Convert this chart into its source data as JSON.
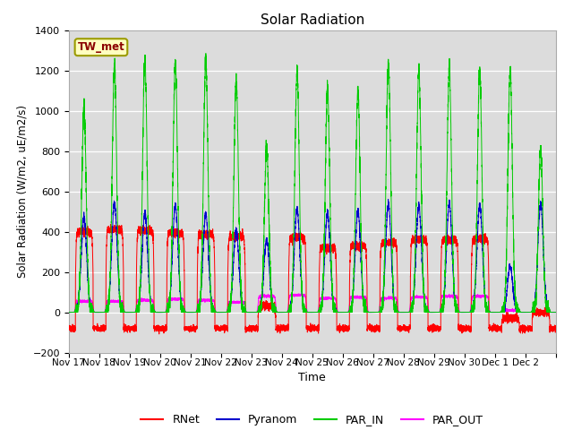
{
  "title": "Solar Radiation",
  "ylabel": "Solar Radiation (W/m2, uE/m2/s)",
  "xlabel": "Time",
  "ylim": [
    -200,
    1400
  ],
  "yticks": [
    -200,
    0,
    200,
    400,
    600,
    800,
    1000,
    1200,
    1400
  ],
  "xtick_labels": [
    "Nov 17",
    "Nov 18",
    "Nov 19",
    "Nov 20",
    "Nov 21",
    "Nov 22",
    "Nov 23",
    "Nov 24",
    "Nov 25",
    "Nov 26",
    "Nov 27",
    "Nov 28",
    "Nov 29",
    "Nov 30",
    "Dec 1",
    "Dec 2"
  ],
  "station_label": "TW_met",
  "station_label_color": "#8B0000",
  "station_box_facecolor": "#FFFFC0",
  "station_box_edgecolor": "#9B9B00",
  "colors": {
    "RNet": "#FF0000",
    "Pyranom": "#0000CD",
    "PAR_IN": "#00CC00",
    "PAR_OUT": "#FF00FF"
  },
  "background_color": "#DCDCDC",
  "grid_color": "#FFFFFF",
  "n_days": 16,
  "day_peaks_PAR_IN": [
    1020,
    1220,
    1260,
    1235,
    1255,
    1150,
    820,
    1200,
    1110,
    1100,
    1240,
    1210,
    1210,
    1200,
    1200,
    800
  ],
  "day_peaks_Pyranom": [
    470,
    540,
    495,
    535,
    490,
    410,
    360,
    515,
    490,
    500,
    540,
    530,
    540,
    535,
    225,
    540
  ],
  "day_peaks_RNet": [
    400,
    410,
    405,
    395,
    385,
    375,
    30,
    370,
    320,
    330,
    345,
    360,
    360,
    365,
    -30,
    0
  ],
  "day_peaks_PAR_OUT": [
    55,
    55,
    60,
    65,
    60,
    50,
    80,
    85,
    70,
    75,
    70,
    75,
    80,
    80,
    10,
    0
  ],
  "night_RNet": -80,
  "day_start": 0.22,
  "day_end": 0.8
}
